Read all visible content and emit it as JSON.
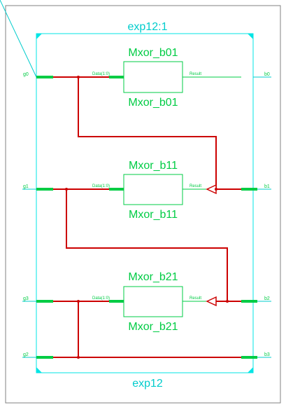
{
  "diagram": {
    "top_title": "exp12:1",
    "bottom_title": "exp12",
    "colors": {
      "frame": "#808080",
      "boundary": "#00e5e5",
      "pin": "#00cc44",
      "wire": "#cc0000",
      "block": "#00cc44",
      "label": "#00cccc",
      "port_text": "#00cc44"
    },
    "ports_left": [
      "g0",
      "g1",
      "g3",
      "g2"
    ],
    "ports_right": [
      "b0",
      "b1",
      "b2",
      "b3"
    ],
    "blocks": [
      {
        "name": "Mxor_b01",
        "input": "Data(1:0)",
        "output": "Result"
      },
      {
        "name": "Mxor_b11",
        "input": "Data(1:0)",
        "output": "Result"
      },
      {
        "name": "Mxor_b21",
        "input": "Data(1:0)",
        "output": "Result"
      }
    ]
  }
}
